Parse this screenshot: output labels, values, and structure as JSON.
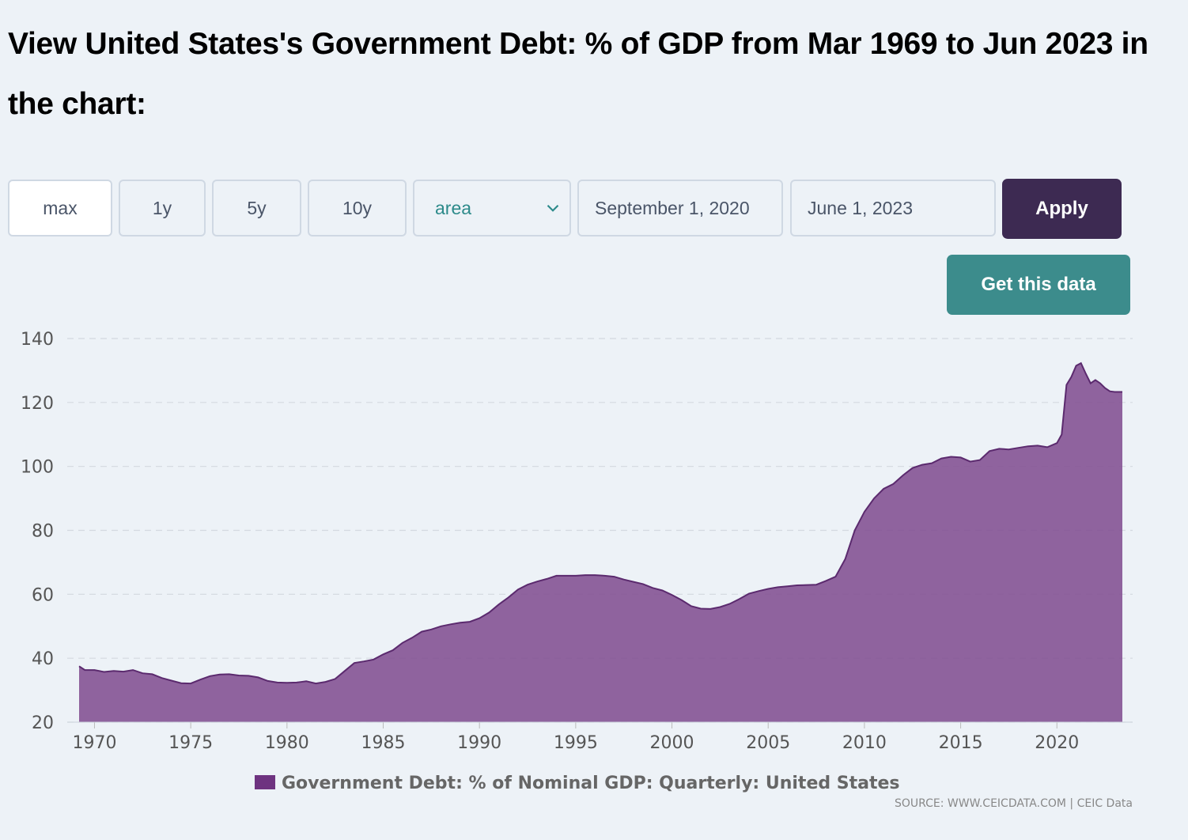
{
  "page": {
    "title": "View United States's Government Debt: % of GDP from Mar 1969 to Jun 2023 in the chart:"
  },
  "controls": {
    "ranges": [
      "max",
      "1y",
      "5y",
      "10y"
    ],
    "active_range": "max",
    "chart_type": "area",
    "start_date": "September 1, 2020",
    "end_date": "June 1, 2023",
    "apply_label": "Apply",
    "get_data_label": "Get this data"
  },
  "colors": {
    "area_fill": "#7e4a8e",
    "area_line": "#5b2a6e",
    "legend_swatch": "#6e3380",
    "apply_bg": "#3d2a52",
    "get_data_bg": "#3c8c8c"
  },
  "chart_data": {
    "type": "area",
    "title": "",
    "xlabel": "",
    "ylabel": "",
    "ylim": [
      20,
      140
    ],
    "y_ticks": [
      20,
      40,
      60,
      80,
      100,
      120,
      140
    ],
    "x_ticks": [
      1970,
      1975,
      1980,
      1985,
      1990,
      1995,
      2000,
      2005,
      2010,
      2015,
      2020
    ],
    "xlim": [
      1969.2,
      2023.4
    ],
    "grid": true,
    "legend_position": "bottom-center",
    "series": [
      {
        "name": "Government Debt: % of Nominal GDP: Quarterly: United States",
        "x": [
          1969.2,
          1969.5,
          1970.0,
          1970.5,
          1971.0,
          1971.5,
          1972.0,
          1972.5,
          1973.0,
          1973.5,
          1974.0,
          1974.5,
          1975.0,
          1975.5,
          1976.0,
          1976.5,
          1977.0,
          1977.5,
          1978.0,
          1978.5,
          1979.0,
          1979.5,
          1980.0,
          1980.5,
          1981.0,
          1981.5,
          1982.0,
          1982.5,
          1983.0,
          1983.5,
          1984.0,
          1984.5,
          1985.0,
          1985.5,
          1986.0,
          1986.5,
          1987.0,
          1987.5,
          1988.0,
          1988.5,
          1989.0,
          1989.5,
          1990.0,
          1990.5,
          1991.0,
          1991.5,
          1992.0,
          1992.5,
          1993.0,
          1993.5,
          1994.0,
          1994.5,
          1995.0,
          1995.5,
          1996.0,
          1996.5,
          1997.0,
          1997.5,
          1998.0,
          1998.5,
          1999.0,
          1999.5,
          2000.0,
          2000.5,
          2001.0,
          2001.5,
          2002.0,
          2002.5,
          2003.0,
          2003.5,
          2004.0,
          2004.5,
          2005.0,
          2005.5,
          2006.0,
          2006.5,
          2007.0,
          2007.5,
          2008.0,
          2008.5,
          2009.0,
          2009.5,
          2010.0,
          2010.5,
          2011.0,
          2011.5,
          2012.0,
          2012.5,
          2013.0,
          2013.5,
          2014.0,
          2014.5,
          2015.0,
          2015.5,
          2016.0,
          2016.5,
          2017.0,
          2017.5,
          2018.0,
          2018.5,
          2019.0,
          2019.5,
          2020.0,
          2020.25,
          2020.5,
          2020.75,
          2021.0,
          2021.25,
          2021.5,
          2021.75,
          2022.0,
          2022.25,
          2022.5,
          2022.75,
          2023.0,
          2023.4
        ],
        "values": [
          37.5,
          36.3,
          36.3,
          35.7,
          36.0,
          35.8,
          36.3,
          35.3,
          35.0,
          33.8,
          33.0,
          32.2,
          32.1,
          33.3,
          34.4,
          34.9,
          35.0,
          34.6,
          34.5,
          34.0,
          32.9,
          32.4,
          32.3,
          32.4,
          32.8,
          32.1,
          32.6,
          33.5,
          36.0,
          38.5,
          39.0,
          39.6,
          41.2,
          42.5,
          44.8,
          46.4,
          48.3,
          49.0,
          50.0,
          50.6,
          51.1,
          51.4,
          52.5,
          54.3,
          56.8,
          59.0,
          61.5,
          63.0,
          64.0,
          64.8,
          65.8,
          65.8,
          65.8,
          66.0,
          66.0,
          65.8,
          65.5,
          64.6,
          63.9,
          63.2,
          62.0,
          61.2,
          59.8,
          58.2,
          56.3,
          55.5,
          55.4,
          56.0,
          57.0,
          58.5,
          60.2,
          61.0,
          61.7,
          62.2,
          62.5,
          62.8,
          62.9,
          63.0,
          64.2,
          65.5,
          71.0,
          80.0,
          85.8,
          90.0,
          93.0,
          94.5,
          97.2,
          99.5,
          100.5,
          101.0,
          102.5,
          103.0,
          102.8,
          101.5,
          102.0,
          104.8,
          105.5,
          105.3,
          105.8,
          106.3,
          106.5,
          106.0,
          107.3,
          110.0,
          125.5,
          128.0,
          131.5,
          132.3,
          129.0,
          126.0,
          127.0,
          126.0,
          124.5,
          123.5,
          123.3,
          123.3
        ]
      }
    ]
  },
  "footer": {
    "source": "SOURCE: WWW.CEICDATA.COM | CEIC Data"
  }
}
